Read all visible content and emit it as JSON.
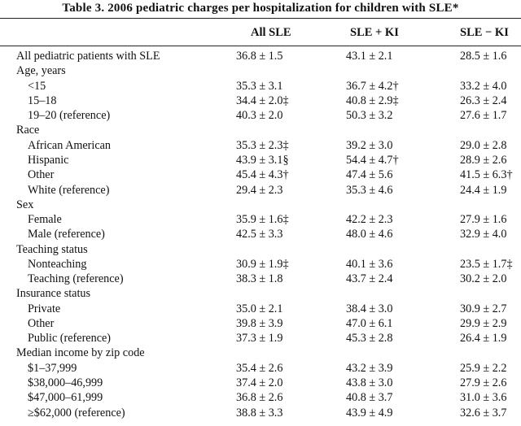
{
  "title": "Table 3.  2006 pediatric charges per hospitalization for children with SLE*",
  "columns": [
    "",
    "All SLE",
    "SLE + KI",
    "SLE − KI"
  ],
  "rows": [
    {
      "label": "All pediatric patients with SLE",
      "indent": 0,
      "values": [
        "36.8 ± 1.5",
        "43.1 ± 2.1",
        "28.5 ± 1.6"
      ]
    },
    {
      "label": "Age, years",
      "indent": 0,
      "values": [
        "",
        "",
        ""
      ]
    },
    {
      "label": "<15",
      "indent": 1,
      "values": [
        "35.3 ± 3.1",
        "36.7 ± 4.2†",
        "33.2 ± 4.0"
      ]
    },
    {
      "label": "15–18",
      "indent": 1,
      "values": [
        "34.4 ± 2.0‡",
        "40.8 ± 2.9‡",
        "26.3 ± 2.4"
      ]
    },
    {
      "label": "19–20 (reference)",
      "indent": 1,
      "values": [
        "40.3 ± 2.0",
        "50.3 ± 3.2",
        "27.6 ± 1.7"
      ]
    },
    {
      "label": "Race",
      "indent": 0,
      "values": [
        "",
        "",
        ""
      ]
    },
    {
      "label": "African American",
      "indent": 1,
      "values": [
        "35.3 ± 2.3‡",
        "39.2 ± 3.0",
        "29.0 ± 2.8"
      ]
    },
    {
      "label": "Hispanic",
      "indent": 1,
      "values": [
        "43.9 ± 3.1§",
        "54.4 ± 4.7†",
        "28.9 ± 2.6"
      ]
    },
    {
      "label": "Other",
      "indent": 1,
      "values": [
        "45.4 ± 4.3†",
        "47.4 ± 5.6",
        "41.5 ± 6.3†"
      ]
    },
    {
      "label": "White (reference)",
      "indent": 1,
      "values": [
        "29.4 ± 2.3",
        "35.3 ± 4.6",
        "24.4 ± 1.9"
      ]
    },
    {
      "label": "Sex",
      "indent": 0,
      "values": [
        "",
        "",
        ""
      ]
    },
    {
      "label": "Female",
      "indent": 1,
      "values": [
        "35.9 ± 1.6‡",
        "42.2 ± 2.3",
        "27.9 ± 1.6"
      ]
    },
    {
      "label": "Male (reference)",
      "indent": 1,
      "values": [
        "42.5 ± 3.3",
        "48.0 ± 4.6",
        "32.9 ± 4.0"
      ]
    },
    {
      "label": "Teaching status",
      "indent": 0,
      "values": [
        "",
        "",
        ""
      ]
    },
    {
      "label": "Nonteaching",
      "indent": 1,
      "values": [
        "30.9 ± 1.9‡",
        "40.1 ± 3.6",
        "23.5 ± 1.7‡"
      ]
    },
    {
      "label": "Teaching (reference)",
      "indent": 1,
      "values": [
        "38.3 ± 1.8",
        "43.7 ± 2.4",
        "30.2 ± 2.0"
      ]
    },
    {
      "label": "Insurance status",
      "indent": 0,
      "values": [
        "",
        "",
        ""
      ]
    },
    {
      "label": "Private",
      "indent": 1,
      "values": [
        "35.0 ± 2.1",
        "38.4 ± 3.0",
        "30.9 ± 2.7"
      ]
    },
    {
      "label": "Other",
      "indent": 1,
      "values": [
        "39.8 ± 3.9",
        "47.0 ± 6.1",
        "29.9 ± 2.9"
      ]
    },
    {
      "label": "Public (reference)",
      "indent": 1,
      "values": [
        "37.3 ± 1.9",
        "45.3 ± 2.8",
        "26.4 ± 1.9"
      ]
    },
    {
      "label": "Median income by zip code",
      "indent": 0,
      "values": [
        "",
        "",
        ""
      ]
    },
    {
      "label": "$1–37,999",
      "indent": 1,
      "values": [
        "35.4 ± 2.6",
        "43.2 ± 3.9",
        "25.9 ± 2.2"
      ]
    },
    {
      "label": "$38,000–46,999",
      "indent": 1,
      "values": [
        "37.4 ± 2.0",
        "43.8 ± 3.0",
        "27.9 ± 2.6"
      ]
    },
    {
      "label": "$47,000–61,999",
      "indent": 1,
      "values": [
        "36.8 ± 2.6",
        "40.8 ± 3.7",
        "31.0 ± 3.6"
      ]
    },
    {
      "label": "≥$62,000 (reference)",
      "indent": 1,
      "values": [
        "38.8 ± 3.3",
        "43.9 ± 4.9",
        "32.6 ± 3.7"
      ]
    }
  ]
}
